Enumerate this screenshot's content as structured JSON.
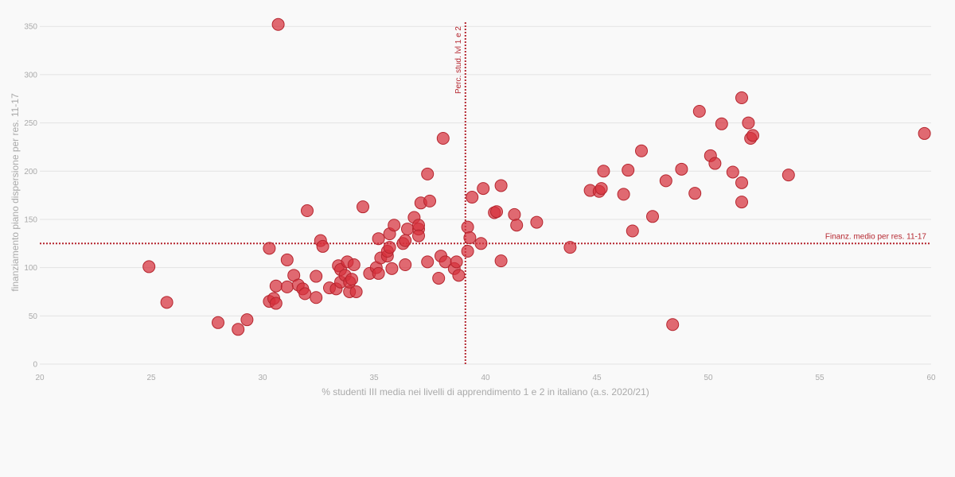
{
  "chart_data": {
    "type": "scatter",
    "xlabel": "% studenti III media nei livelli di apprendimento 1 e 2 in italiano (a.s. 2020/21)",
    "ylabel": "finanziamento piano dispersione per res. 11-17",
    "xlim": [
      20,
      60
    ],
    "ylim": [
      0,
      365
    ],
    "x_ticks": [
      20,
      25,
      30,
      35,
      40,
      45,
      50,
      55,
      60
    ],
    "y_ticks": [
      0,
      50,
      100,
      150,
      200,
      250,
      300,
      350
    ],
    "grid": "horizontal",
    "colors": {
      "point_fill": "#d6313b",
      "point_stroke": "#b5262f",
      "reference_line": "#b5262f",
      "gridline": "#e3e3e3",
      "tick_text": "#aaaaaa"
    },
    "reference_lines": [
      {
        "orientation": "vertical",
        "value": 39.1,
        "label": "Perc. stud. lvl 1 e 2"
      },
      {
        "orientation": "horizontal",
        "value": 125,
        "label": "Finanz. medio per res. 11-17"
      }
    ],
    "points": [
      [
        30.7,
        352
      ],
      [
        24.9,
        101
      ],
      [
        25.7,
        64
      ],
      [
        28.0,
        43
      ],
      [
        28.9,
        36
      ],
      [
        29.3,
        46
      ],
      [
        30.3,
        120
      ],
      [
        30.3,
        65
      ],
      [
        30.5,
        68
      ],
      [
        30.6,
        81
      ],
      [
        30.6,
        63
      ],
      [
        31.1,
        108
      ],
      [
        31.1,
        80
      ],
      [
        31.4,
        92
      ],
      [
        31.6,
        82
      ],
      [
        31.8,
        78
      ],
      [
        31.9,
        73
      ],
      [
        32.0,
        159
      ],
      [
        32.4,
        91
      ],
      [
        32.4,
        69
      ],
      [
        32.6,
        128
      ],
      [
        32.7,
        122
      ],
      [
        33.0,
        79
      ],
      [
        33.3,
        78
      ],
      [
        33.4,
        102
      ],
      [
        33.5,
        85
      ],
      [
        33.5,
        98
      ],
      [
        33.7,
        92
      ],
      [
        33.8,
        106
      ],
      [
        33.9,
        75
      ],
      [
        33.9,
        85
      ],
      [
        34.0,
        88
      ],
      [
        34.1,
        103
      ],
      [
        34.2,
        75
      ],
      [
        34.5,
        163
      ],
      [
        34.8,
        94
      ],
      [
        35.1,
        100
      ],
      [
        35.2,
        130
      ],
      [
        35.2,
        94
      ],
      [
        35.3,
        110
      ],
      [
        35.6,
        112
      ],
      [
        35.6,
        117
      ],
      [
        35.7,
        135
      ],
      [
        35.7,
        121
      ],
      [
        35.8,
        99
      ],
      [
        35.9,
        144
      ],
      [
        36.3,
        125
      ],
      [
        36.4,
        103
      ],
      [
        36.4,
        128
      ],
      [
        36.5,
        140
      ],
      [
        36.8,
        152
      ],
      [
        37.0,
        140
      ],
      [
        37.0,
        144
      ],
      [
        37.0,
        133
      ],
      [
        37.1,
        167
      ],
      [
        37.4,
        106
      ],
      [
        37.4,
        197
      ],
      [
        37.5,
        169
      ],
      [
        37.9,
        89
      ],
      [
        38.0,
        112
      ],
      [
        38.1,
        234
      ],
      [
        38.2,
        106
      ],
      [
        38.6,
        99
      ],
      [
        38.7,
        106
      ],
      [
        38.8,
        92
      ],
      [
        39.2,
        142
      ],
      [
        39.2,
        117
      ],
      [
        39.3,
        131
      ],
      [
        39.4,
        173
      ],
      [
        39.8,
        125
      ],
      [
        39.9,
        182
      ],
      [
        40.4,
        157
      ],
      [
        40.5,
        158
      ],
      [
        40.7,
        185
      ],
      [
        40.7,
        107
      ],
      [
        41.3,
        155
      ],
      [
        41.4,
        144
      ],
      [
        42.3,
        147
      ],
      [
        43.8,
        121
      ],
      [
        44.7,
        180
      ],
      [
        45.1,
        179
      ],
      [
        45.2,
        182
      ],
      [
        45.3,
        200
      ],
      [
        46.2,
        176
      ],
      [
        46.4,
        201
      ],
      [
        46.6,
        138
      ],
      [
        47.0,
        221
      ],
      [
        47.5,
        153
      ],
      [
        48.1,
        190
      ],
      [
        48.4,
        41
      ],
      [
        48.8,
        202
      ],
      [
        49.4,
        177
      ],
      [
        49.6,
        262
      ],
      [
        50.1,
        216
      ],
      [
        50.3,
        208
      ],
      [
        50.6,
        249
      ],
      [
        51.1,
        199
      ],
      [
        51.5,
        276
      ],
      [
        51.5,
        188
      ],
      [
        51.5,
        168
      ],
      [
        51.8,
        250
      ],
      [
        51.9,
        234
      ],
      [
        52.0,
        237
      ],
      [
        53.6,
        196
      ],
      [
        59.7,
        239
      ]
    ]
  }
}
